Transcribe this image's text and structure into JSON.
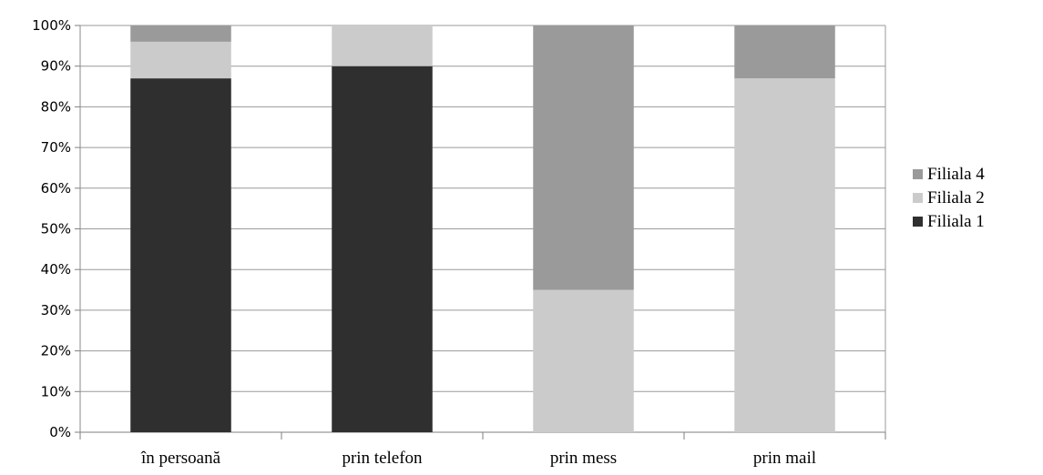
{
  "chart_data": {
    "type": "bar",
    "stacked": true,
    "normalized": true,
    "categories": [
      "în persoană",
      "prin telefon",
      "prin mess",
      "prin mail"
    ],
    "series": [
      {
        "name": "Filiala 1",
        "values": [
          87,
          90,
          0,
          0
        ],
        "color": "#2e2f2e"
      },
      {
        "name": "Filiala 2",
        "values": [
          9,
          10,
          35,
          87
        ],
        "color": "#cbcbcb"
      },
      {
        "name": "Filiala 4",
        "values": [
          4,
          0,
          65,
          13
        ],
        "color": "#9a9a9a"
      }
    ],
    "ylim": [
      0,
      100
    ],
    "yticks": [
      "0%",
      "10%",
      "20%",
      "30%",
      "40%",
      "50%",
      "60%",
      "70%",
      "80%",
      "90%",
      "100%"
    ],
    "grid": true,
    "legend_position": "right",
    "legend_order": [
      "Filiala 4",
      "Filiala 2",
      "Filiala 1"
    ]
  }
}
